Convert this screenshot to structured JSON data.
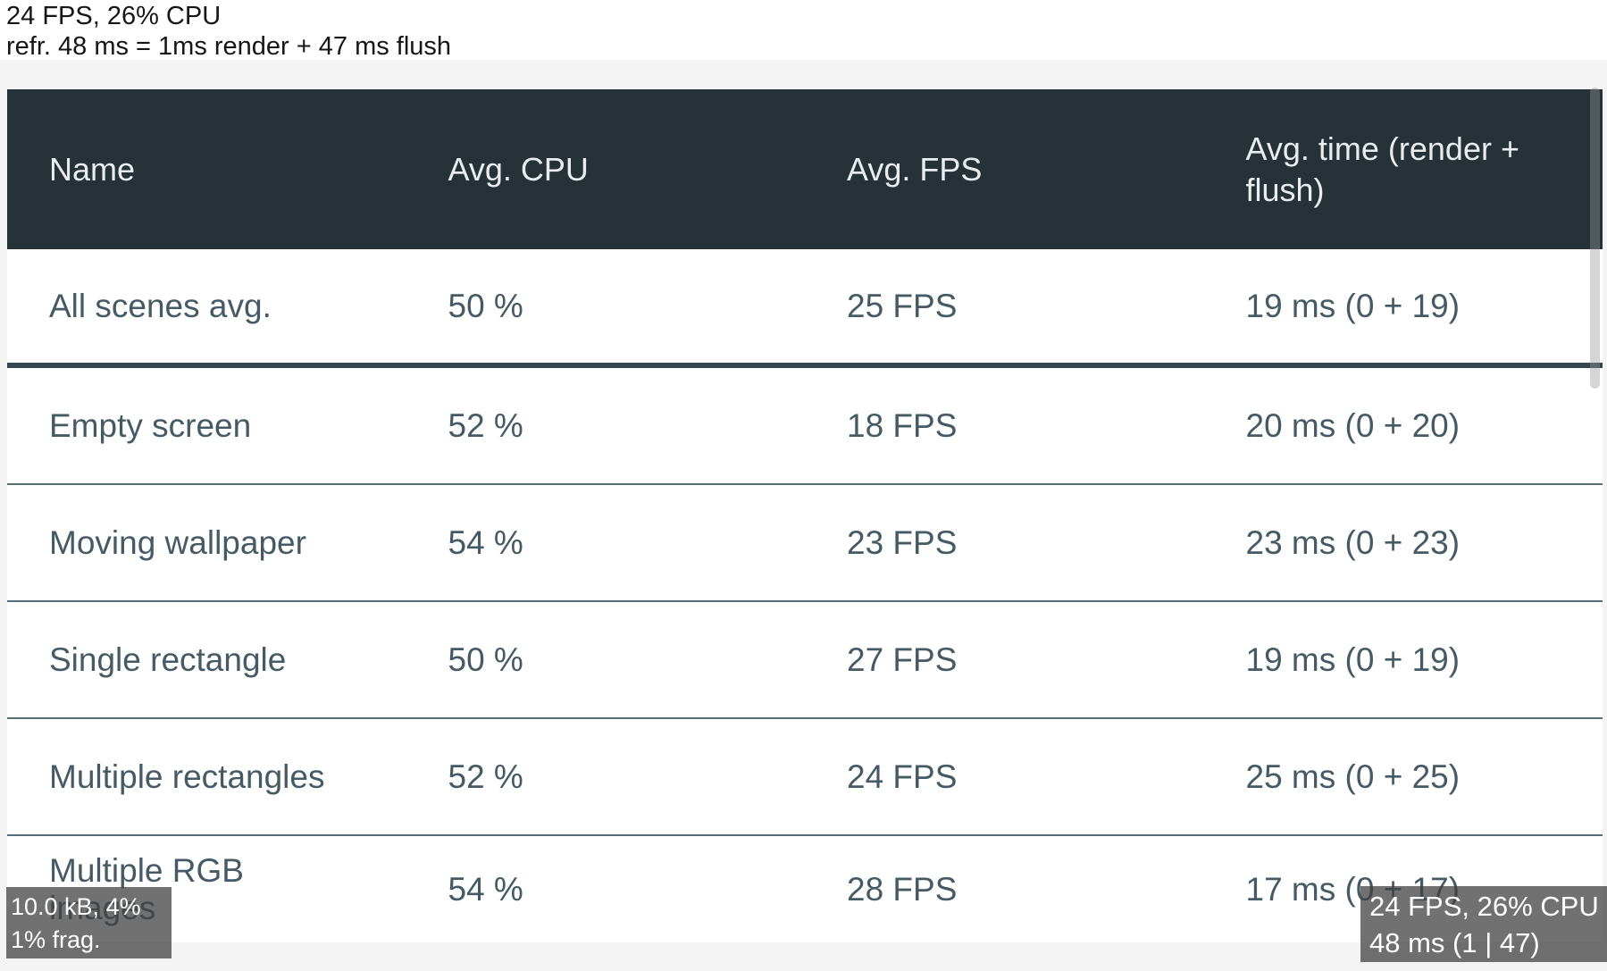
{
  "status_bar": {
    "line1": "24 FPS, 26% CPU",
    "line2": "refr. 48 ms = 1ms render + 47 ms flush"
  },
  "table": {
    "columns": [
      "Name",
      "Avg. CPU",
      "Avg. FPS",
      "Avg. time (render + flush)"
    ],
    "rows": [
      {
        "name": "All scenes avg.",
        "cpu": "50 %",
        "fps": "25 FPS",
        "time": "19 ms (0 + 19)"
      },
      {
        "name": "Empty screen",
        "cpu": "52 %",
        "fps": "18 FPS",
        "time": "20 ms (0 + 20)"
      },
      {
        "name": "Moving wallpaper",
        "cpu": "54 %",
        "fps": "23 FPS",
        "time": "23 ms (0 + 23)"
      },
      {
        "name": "Single rectangle",
        "cpu": "50 %",
        "fps": "27 FPS",
        "time": "19 ms (0 + 19)"
      },
      {
        "name": "Multiple rectangles",
        "cpu": "52 %",
        "fps": "24 FPS",
        "time": "25 ms (0 + 25)"
      },
      {
        "name": "Multiple RGB images",
        "cpu": "54 %",
        "fps": "28 FPS",
        "time": "17 ms (0 + 17)"
      }
    ]
  },
  "overlays": {
    "memory": {
      "line1": "10.0 kB, 4%",
      "line2": "1% frag."
    },
    "performance": {
      "line1": "24 FPS, 26% CPU",
      "line2": "48 ms (1 | 47)"
    }
  },
  "colors": {
    "header_background": "#263238",
    "body_text": "#455a64",
    "separator_thin": "#546e7a",
    "separator_thick": "#37474f",
    "page_background": "#f4f4f4",
    "overlay_background": "rgba(66,66,66,0.75)",
    "overlay_text": "#ffffff",
    "status_text": "#161616"
  }
}
